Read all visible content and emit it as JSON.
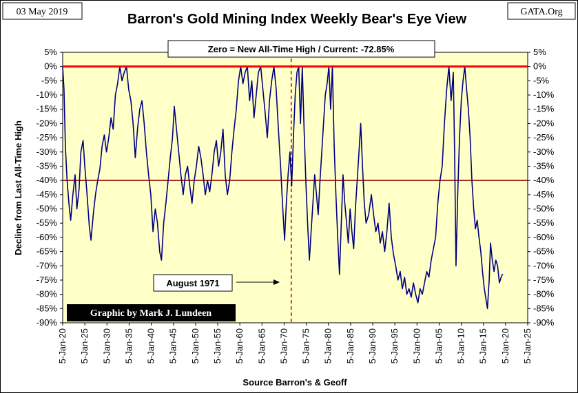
{
  "header": {
    "date": "03 May 2019",
    "title": "Barron's Gold Mining Index Weekly Bear's Eye View",
    "source_site": "GATA.Org"
  },
  "annotations": {
    "zero_box": "Zero = New All-Time High / Current: -72.85%",
    "event_label": "August 1971",
    "credit": "Graphic by Mark J. Lundeen"
  },
  "colors": {
    "plot_bg": "#FFFFC8",
    "series": "#000080",
    "zero_line": "#FF0000",
    "ref_line": "#8B0000",
    "event_line": "#C00000"
  },
  "chart_data": {
    "type": "line",
    "title": "Barron's Gold Mining Index Weekly Bear's Eye View",
    "xlabel": "Source Barron's & Geoff",
    "ylabel": "Decline from Last All-Time High",
    "ylim": [
      -90,
      5
    ],
    "xlim": [
      1920,
      2025
    ],
    "y_ticks": [
      "5%",
      "0%",
      "-5%",
      "-10%",
      "-15%",
      "-20%",
      "-25%",
      "-30%",
      "-35%",
      "-40%",
      "-45%",
      "-50%",
      "-55%",
      "-60%",
      "-65%",
      "-70%",
      "-75%",
      "-80%",
      "-85%",
      "-90%"
    ],
    "x_ticks": [
      "5-Jan-20",
      "5-Jan-25",
      "5-Jan-30",
      "5-Jan-35",
      "5-Jan-40",
      "5-Jan-45",
      "5-Jan-50",
      "5-Jan-55",
      "5-Jan-60",
      "5-Jan-65",
      "5-Jan-70",
      "5-Jan-75",
      "5-Jan-80",
      "5-Jan-85",
      "5-Jan-90",
      "5-Jan-95",
      "5-Jan-00",
      "5-Jan-05",
      "5-Jan-10",
      "5-Jan-15",
      "5-Jan-20",
      "5-Jan-25"
    ],
    "reference_lines": [
      {
        "y": 0
      },
      {
        "y": -40
      }
    ],
    "event_line_x": 1971.6,
    "current_value": -72.85,
    "series": [
      {
        "points": [
          [
            1920.0,
            0
          ],
          [
            1920.3,
            -8
          ],
          [
            1920.6,
            -28
          ],
          [
            1921.0,
            -40
          ],
          [
            1921.4,
            -48
          ],
          [
            1921.8,
            -54
          ],
          [
            1922.3,
            -45
          ],
          [
            1922.8,
            -38
          ],
          [
            1923.2,
            -50
          ],
          [
            1923.7,
            -43
          ],
          [
            1924.1,
            -30
          ],
          [
            1924.6,
            -26
          ],
          [
            1925.0,
            -35
          ],
          [
            1925.5,
            -45
          ],
          [
            1926.0,
            -56
          ],
          [
            1926.4,
            -61
          ],
          [
            1926.9,
            -52
          ],
          [
            1927.4,
            -45
          ],
          [
            1927.9,
            -40
          ],
          [
            1928.4,
            -36
          ],
          [
            1928.9,
            -28
          ],
          [
            1929.4,
            -24
          ],
          [
            1929.9,
            -30
          ],
          [
            1930.4,
            -25
          ],
          [
            1930.9,
            -18
          ],
          [
            1931.4,
            -22
          ],
          [
            1931.9,
            -10
          ],
          [
            1932.4,
            -6
          ],
          [
            1932.9,
            0
          ],
          [
            1933.4,
            -5
          ],
          [
            1933.9,
            -2
          ],
          [
            1934.4,
            0
          ],
          [
            1934.9,
            -8
          ],
          [
            1935.4,
            -12
          ],
          [
            1935.9,
            -20
          ],
          [
            1936.4,
            -32
          ],
          [
            1936.9,
            -22
          ],
          [
            1937.4,
            -15
          ],
          [
            1937.9,
            -12
          ],
          [
            1938.4,
            -20
          ],
          [
            1938.9,
            -30
          ],
          [
            1939.4,
            -38
          ],
          [
            1939.9,
            -45
          ],
          [
            1940.4,
            -58
          ],
          [
            1940.9,
            -50
          ],
          [
            1941.4,
            -55
          ],
          [
            1941.9,
            -65
          ],
          [
            1942.3,
            -68
          ],
          [
            1942.8,
            -55
          ],
          [
            1943.3,
            -48
          ],
          [
            1943.8,
            -40
          ],
          [
            1944.3,
            -32
          ],
          [
            1944.8,
            -25
          ],
          [
            1945.2,
            -14
          ],
          [
            1945.7,
            -22
          ],
          [
            1946.2,
            -30
          ],
          [
            1946.7,
            -38
          ],
          [
            1947.2,
            -45
          ],
          [
            1947.7,
            -38
          ],
          [
            1948.2,
            -35
          ],
          [
            1948.7,
            -42
          ],
          [
            1949.2,
            -48
          ],
          [
            1949.7,
            -40
          ],
          [
            1950.2,
            -35
          ],
          [
            1950.7,
            -28
          ],
          [
            1951.2,
            -32
          ],
          [
            1951.7,
            -38
          ],
          [
            1952.2,
            -45
          ],
          [
            1952.7,
            -40
          ],
          [
            1953.2,
            -44
          ],
          [
            1953.7,
            -38
          ],
          [
            1954.2,
            -30
          ],
          [
            1954.7,
            -26
          ],
          [
            1955.2,
            -35
          ],
          [
            1955.7,
            -30
          ],
          [
            1956.2,
            -22
          ],
          [
            1956.7,
            -38
          ],
          [
            1957.2,
            -45
          ],
          [
            1957.7,
            -40
          ],
          [
            1958.2,
            -30
          ],
          [
            1958.7,
            -22
          ],
          [
            1959.2,
            -15
          ],
          [
            1959.7,
            -5
          ],
          [
            1960.2,
            0
          ],
          [
            1960.7,
            -6
          ],
          [
            1961.2,
            -2
          ],
          [
            1961.7,
            0
          ],
          [
            1962.2,
            -12
          ],
          [
            1962.7,
            -5
          ],
          [
            1963.2,
            -18
          ],
          [
            1963.7,
            -10
          ],
          [
            1964.2,
            -2
          ],
          [
            1964.7,
            0
          ],
          [
            1965.2,
            -8
          ],
          [
            1965.7,
            -16
          ],
          [
            1966.2,
            -25
          ],
          [
            1966.7,
            -12
          ],
          [
            1967.2,
            -5
          ],
          [
            1967.7,
            0
          ],
          [
            1968.2,
            -8
          ],
          [
            1968.7,
            -22
          ],
          [
            1969.2,
            -35
          ],
          [
            1969.7,
            -50
          ],
          [
            1970.1,
            -61
          ],
          [
            1970.5,
            -48
          ],
          [
            1970.9,
            -38
          ],
          [
            1971.3,
            -30
          ],
          [
            1971.7,
            -42
          ],
          [
            1972.1,
            -25
          ],
          [
            1972.5,
            -10
          ],
          [
            1972.9,
            -2
          ],
          [
            1973.3,
            0
          ],
          [
            1973.7,
            -20
          ],
          [
            1974.1,
            0
          ],
          [
            1974.5,
            -22
          ],
          [
            1974.9,
            -40
          ],
          [
            1975.3,
            -55
          ],
          [
            1975.7,
            -68
          ],
          [
            1976.1,
            -58
          ],
          [
            1976.5,
            -48
          ],
          [
            1976.9,
            -38
          ],
          [
            1977.3,
            -45
          ],
          [
            1977.7,
            -52
          ],
          [
            1978.1,
            -40
          ],
          [
            1978.5,
            -30
          ],
          [
            1978.9,
            -20
          ],
          [
            1979.3,
            -10
          ],
          [
            1979.7,
            -6
          ],
          [
            1980.1,
            0
          ],
          [
            1980.5,
            -15
          ],
          [
            1980.9,
            0
          ],
          [
            1981.3,
            -28
          ],
          [
            1981.7,
            -45
          ],
          [
            1982.1,
            -60
          ],
          [
            1982.5,
            -73
          ],
          [
            1982.9,
            -55
          ],
          [
            1983.3,
            -38
          ],
          [
            1983.7,
            -48
          ],
          [
            1984.1,
            -55
          ],
          [
            1984.5,
            -62
          ],
          [
            1984.9,
            -50
          ],
          [
            1985.3,
            -58
          ],
          [
            1985.7,
            -64
          ],
          [
            1986.1,
            -50
          ],
          [
            1986.5,
            -40
          ],
          [
            1986.9,
            -30
          ],
          [
            1987.3,
            -20
          ],
          [
            1987.7,
            -35
          ],
          [
            1988.1,
            -48
          ],
          [
            1988.5,
            -55
          ],
          [
            1989.1,
            -52
          ],
          [
            1989.7,
            -45
          ],
          [
            1990.2,
            -52
          ],
          [
            1990.7,
            -58
          ],
          [
            1991.2,
            -55
          ],
          [
            1991.7,
            -62
          ],
          [
            1992.2,
            -58
          ],
          [
            1992.7,
            -65
          ],
          [
            1993.2,
            -58
          ],
          [
            1993.7,
            -48
          ],
          [
            1994.2,
            -60
          ],
          [
            1994.7,
            -66
          ],
          [
            1995.2,
            -70
          ],
          [
            1995.7,
            -75
          ],
          [
            1996.2,
            -72
          ],
          [
            1996.7,
            -78
          ],
          [
            1997.2,
            -74
          ],
          [
            1997.7,
            -80
          ],
          [
            1998.2,
            -78
          ],
          [
            1998.7,
            -81
          ],
          [
            1999.2,
            -76
          ],
          [
            1999.7,
            -80
          ],
          [
            2000.2,
            -83
          ],
          [
            2000.7,
            -78
          ],
          [
            2001.2,
            -80
          ],
          [
            2001.7,
            -76
          ],
          [
            2002.2,
            -72
          ],
          [
            2002.7,
            -74
          ],
          [
            2003.2,
            -68
          ],
          [
            2003.7,
            -64
          ],
          [
            2004.2,
            -60
          ],
          [
            2004.7,
            -48
          ],
          [
            2005.2,
            -40
          ],
          [
            2005.7,
            -35
          ],
          [
            2006.2,
            -20
          ],
          [
            2006.7,
            -8
          ],
          [
            2007.2,
            0
          ],
          [
            2007.7,
            -12
          ],
          [
            2008.2,
            -2
          ],
          [
            2008.5,
            -30
          ],
          [
            2008.8,
            -70
          ],
          [
            2009.2,
            -45
          ],
          [
            2009.6,
            -25
          ],
          [
            2010.0,
            -12
          ],
          [
            2010.4,
            -5
          ],
          [
            2010.8,
            0
          ],
          [
            2011.2,
            -8
          ],
          [
            2011.6,
            -15
          ],
          [
            2012.0,
            -25
          ],
          [
            2012.4,
            -40
          ],
          [
            2012.8,
            -50
          ],
          [
            2013.2,
            -57
          ],
          [
            2013.6,
            -54
          ],
          [
            2014.0,
            -60
          ],
          [
            2014.4,
            -65
          ],
          [
            2014.8,
            -72
          ],
          [
            2015.2,
            -78
          ],
          [
            2015.6,
            -82
          ],
          [
            2015.9,
            -85
          ],
          [
            2016.3,
            -75
          ],
          [
            2016.6,
            -62
          ],
          [
            2017.0,
            -68
          ],
          [
            2017.4,
            -72
          ],
          [
            2017.8,
            -68
          ],
          [
            2018.2,
            -70
          ],
          [
            2018.6,
            -76
          ],
          [
            2019.0,
            -74
          ],
          [
            2019.34,
            -72.85
          ]
        ]
      }
    ]
  }
}
